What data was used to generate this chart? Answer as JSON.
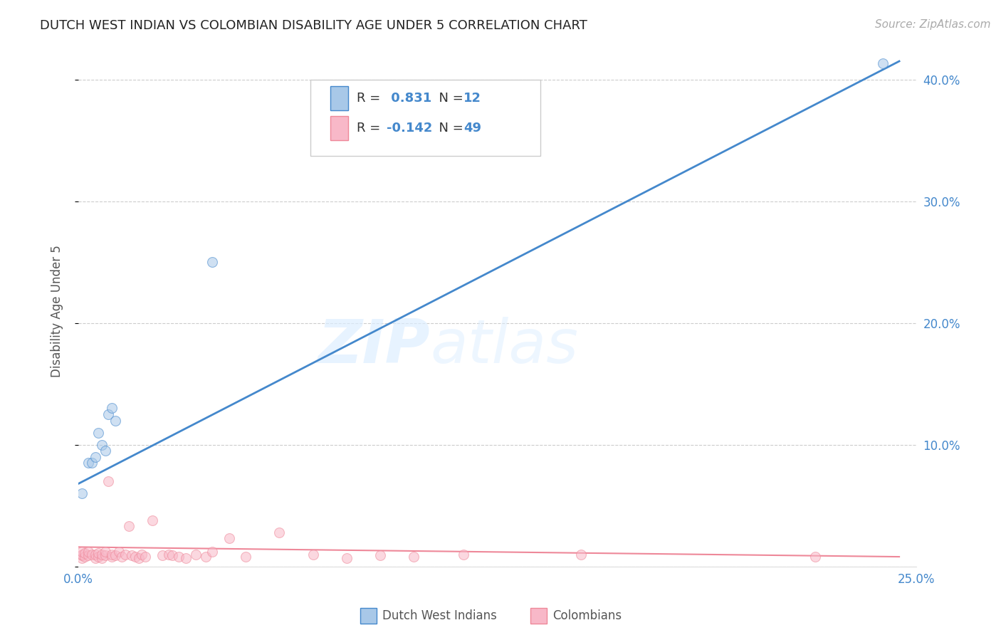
{
  "title": "DUTCH WEST INDIAN VS COLOMBIAN DISABILITY AGE UNDER 5 CORRELATION CHART",
  "source": "Source: ZipAtlas.com",
  "ylabel": "Disability Age Under 5",
  "xlim": [
    0.0,
    0.25
  ],
  "ylim": [
    0.0,
    0.42
  ],
  "blue_color": "#a8c8e8",
  "pink_color": "#f8b8c8",
  "blue_line_color": "#4488cc",
  "pink_line_color": "#ee8899",
  "title_color": "#222222",
  "axis_label_color": "#4488cc",
  "background_color": "#ffffff",
  "grid_color": "#cccccc",
  "watermark_zip": "ZIP",
  "watermark_atlas": "atlas",
  "blue_trend_x": [
    0.0,
    0.245
  ],
  "blue_trend_y": [
    0.068,
    0.415
  ],
  "pink_trend_x": [
    0.0,
    0.245
  ],
  "pink_trend_y": [
    0.016,
    0.008
  ],
  "blue_points_x": [
    0.001,
    0.003,
    0.004,
    0.005,
    0.006,
    0.007,
    0.008,
    0.009,
    0.01,
    0.011,
    0.04,
    0.24
  ],
  "blue_points_y": [
    0.06,
    0.085,
    0.085,
    0.09,
    0.11,
    0.1,
    0.095,
    0.125,
    0.13,
    0.12,
    0.25,
    0.413
  ],
  "pink_points_x": [
    0.001,
    0.001,
    0.001,
    0.001,
    0.002,
    0.002,
    0.003,
    0.003,
    0.004,
    0.005,
    0.005,
    0.006,
    0.006,
    0.007,
    0.007,
    0.008,
    0.008,
    0.009,
    0.01,
    0.01,
    0.011,
    0.012,
    0.013,
    0.014,
    0.015,
    0.016,
    0.017,
    0.018,
    0.019,
    0.02,
    0.022,
    0.025,
    0.027,
    0.028,
    0.03,
    0.032,
    0.035,
    0.038,
    0.04,
    0.045,
    0.05,
    0.06,
    0.07,
    0.08,
    0.09,
    0.1,
    0.115,
    0.15,
    0.22
  ],
  "pink_points_y": [
    0.007,
    0.009,
    0.01,
    0.012,
    0.008,
    0.011,
    0.009,
    0.012,
    0.01,
    0.007,
    0.01,
    0.008,
    0.011,
    0.007,
    0.01,
    0.009,
    0.012,
    0.07,
    0.008,
    0.01,
    0.009,
    0.012,
    0.008,
    0.01,
    0.033,
    0.009,
    0.008,
    0.007,
    0.01,
    0.008,
    0.038,
    0.009,
    0.01,
    0.009,
    0.008,
    0.007,
    0.01,
    0.008,
    0.012,
    0.023,
    0.008,
    0.028,
    0.01,
    0.007,
    0.009,
    0.008,
    0.01,
    0.01,
    0.008
  ],
  "marker_size": 100,
  "alpha": 0.55,
  "blue_R": "0.831",
  "blue_N": "12",
  "pink_R": "-0.142",
  "pink_N": "49"
}
